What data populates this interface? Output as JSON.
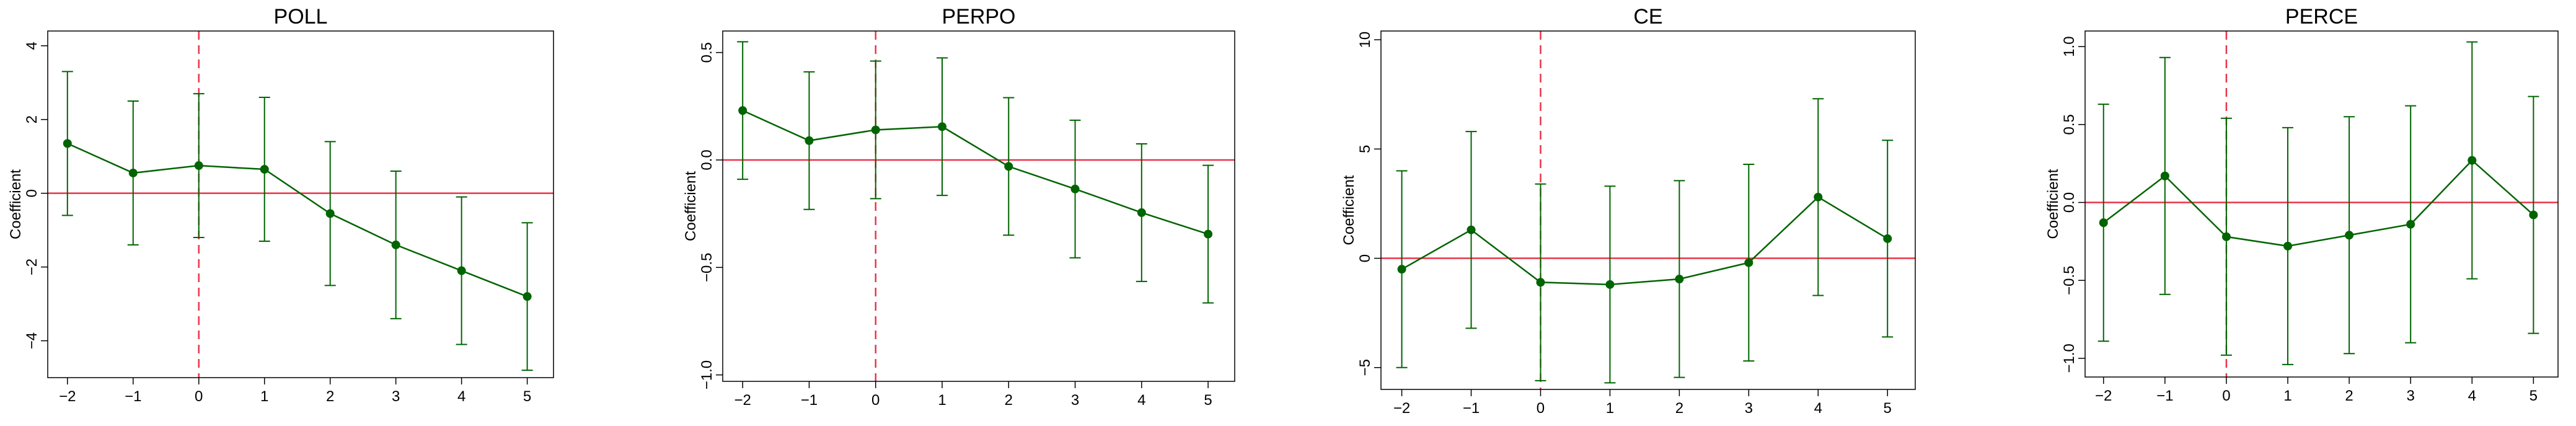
{
  "colors": {
    "series": "#006400",
    "zero_line": "#e8344a",
    "event_line": "#e8344a",
    "frame": "#000000"
  },
  "chart_data": [
    {
      "type": "line",
      "title": "POLL",
      "ylabel": "Coefficient",
      "xlabel": "",
      "x": [
        -2,
        -1,
        0,
        1,
        2,
        3,
        4,
        5
      ],
      "xlim": [
        -2.3,
        5.4
      ],
      "ylim": [
        -5.0,
        4.4
      ],
      "xticks": [
        -2,
        -1,
        0,
        1,
        2,
        3,
        4,
        5
      ],
      "yticks": [
        -4,
        -2,
        0,
        2,
        4
      ],
      "xtick_labels": [
        "−2",
        "−1",
        "0",
        "1",
        "2",
        "3",
        "4",
        "5"
      ],
      "ytick_labels": [
        "−4",
        "−2",
        "0",
        "2",
        "4"
      ],
      "event_x": 0,
      "hline_y": 0,
      "grid": false,
      "series": [
        {
          "values": [
            1.35,
            0.55,
            0.75,
            0.65,
            -0.55,
            -1.4,
            -2.1,
            -2.8
          ],
          "ci_low": [
            -0.6,
            -1.4,
            -1.2,
            -1.3,
            -2.5,
            -3.4,
            -4.1,
            -4.8
          ],
          "ci_high": [
            3.3,
            2.5,
            2.7,
            2.6,
            1.4,
            0.6,
            -0.1,
            -0.8
          ]
        }
      ]
    },
    {
      "type": "line",
      "title": "PERPO",
      "ylabel": "Coefficient",
      "xlabel": "",
      "x": [
        -2,
        -1,
        0,
        1,
        2,
        3,
        4,
        5
      ],
      "xlim": [
        -2.3,
        5.4
      ],
      "ylim": [
        -1.03,
        0.6
      ],
      "xticks": [
        -2,
        -1,
        0,
        1,
        2,
        3,
        4,
        5
      ],
      "yticks": [
        -1.0,
        -0.5,
        0.0,
        0.5
      ],
      "xtick_labels": [
        "−2",
        "−1",
        "0",
        "1",
        "2",
        "3",
        "4",
        "5"
      ],
      "ytick_labels": [
        "−1.0",
        "−0.5",
        "0.0",
        "0.5"
      ],
      "event_x": 0,
      "hline_y": 0,
      "grid": false,
      "series": [
        {
          "values": [
            0.23,
            0.09,
            0.14,
            0.155,
            -0.03,
            -0.135,
            -0.245,
            -0.345
          ],
          "ci_low": [
            -0.09,
            -0.23,
            -0.18,
            -0.165,
            -0.35,
            -0.455,
            -0.565,
            -0.665
          ],
          "ci_high": [
            0.55,
            0.41,
            0.46,
            0.475,
            0.29,
            0.185,
            0.075,
            -0.025
          ]
        }
      ]
    },
    {
      "type": "line",
      "title": "CE",
      "ylabel": "Coefficient",
      "xlabel": "",
      "x": [
        -2,
        -1,
        0,
        1,
        2,
        3,
        4,
        5
      ],
      "xlim": [
        -2.3,
        5.4
      ],
      "ylim": [
        -6.0,
        10.4
      ],
      "xticks": [
        -2,
        -1,
        0,
        1,
        2,
        3,
        4,
        5
      ],
      "yticks": [
        -5,
        0,
        5,
        10
      ],
      "xtick_labels": [
        "−2",
        "−1",
        "0",
        "1",
        "2",
        "3",
        "4",
        "5"
      ],
      "ytick_labels": [
        "−5",
        "0",
        "5",
        "10"
      ],
      "event_x": 0,
      "hline_y": 0,
      "grid": false,
      "series": [
        {
          "values": [
            -0.5,
            1.3,
            -1.1,
            -1.2,
            -0.95,
            -0.2,
            2.8,
            0.9
          ],
          "ci_low": [
            -5.0,
            -3.2,
            -5.6,
            -5.7,
            -5.45,
            -4.7,
            -1.7,
            -3.6
          ],
          "ci_high": [
            4.0,
            5.8,
            3.4,
            3.3,
            3.55,
            4.3,
            7.3,
            5.4
          ]
        }
      ]
    },
    {
      "type": "line",
      "title": "PERCE",
      "ylabel": "Coefficient",
      "xlabel": "",
      "x": [
        -2,
        -1,
        0,
        1,
        2,
        3,
        4,
        5
      ],
      "xlim": [
        -2.3,
        5.4
      ],
      "ylim": [
        -1.12,
        1.1
      ],
      "xticks": [
        -2,
        -1,
        0,
        1,
        2,
        3,
        4,
        5
      ],
      "yticks": [
        -1.0,
        -0.5,
        0.0,
        0.5,
        1.0
      ],
      "xtick_labels": [
        "−2",
        "−1",
        "0",
        "1",
        "2",
        "3",
        "4",
        "5"
      ],
      "ytick_labels": [
        "−1.0",
        "−0.5",
        "0.0",
        "0.5",
        "1.0"
      ],
      "event_x": 0,
      "hline_y": 0,
      "grid": false,
      "series": [
        {
          "values": [
            -0.13,
            0.17,
            -0.22,
            -0.28,
            -0.21,
            -0.14,
            0.27,
            -0.08
          ],
          "ci_low": [
            -0.89,
            -0.59,
            -0.98,
            -1.04,
            -0.97,
            -0.9,
            -0.49,
            -0.84
          ],
          "ci_high": [
            0.63,
            0.93,
            0.54,
            0.48,
            0.55,
            0.62,
            1.03,
            0.68
          ]
        }
      ]
    }
  ]
}
